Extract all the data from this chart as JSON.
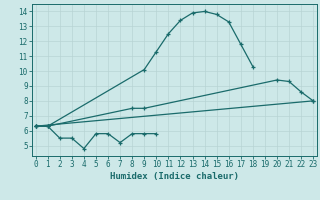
{
  "xlabel": "Humidex (Indice chaleur)",
  "bg_color": "#cde8e8",
  "grid_color": "#b8d4d4",
  "line_color": "#1a6b6b",
  "line1_x": [
    0,
    1,
    9,
    10,
    11,
    12,
    13,
    14,
    15,
    16,
    17,
    18
  ],
  "line1_y": [
    6.3,
    6.3,
    10.1,
    11.3,
    12.5,
    13.4,
    13.9,
    14.0,
    13.8,
    13.3,
    11.8,
    10.3
  ],
  "line2_x": [
    0,
    1,
    8,
    9,
    20,
    21,
    22,
    23
  ],
  "line2_y": [
    6.3,
    6.3,
    7.5,
    7.5,
    9.4,
    9.3,
    8.6,
    8.0
  ],
  "line3_x": [
    0,
    1,
    2,
    3,
    4,
    5,
    6,
    7,
    8,
    9,
    10
  ],
  "line3_y": [
    6.3,
    6.3,
    5.5,
    5.5,
    4.8,
    5.8,
    5.8,
    5.2,
    5.8,
    5.8,
    5.8
  ],
  "line4_x": [
    0,
    23
  ],
  "line4_y": [
    6.3,
    8.0
  ],
  "xlim": [
    -0.3,
    23.3
  ],
  "ylim": [
    4.3,
    14.5
  ],
  "yticks": [
    5,
    6,
    7,
    8,
    9,
    10,
    11,
    12,
    13,
    14
  ],
  "xticks": [
    0,
    1,
    2,
    3,
    4,
    5,
    6,
    7,
    8,
    9,
    10,
    11,
    12,
    13,
    14,
    15,
    16,
    17,
    18,
    19,
    20,
    21,
    22,
    23
  ],
  "figw": 3.2,
  "figh": 2.0,
  "dpi": 100
}
